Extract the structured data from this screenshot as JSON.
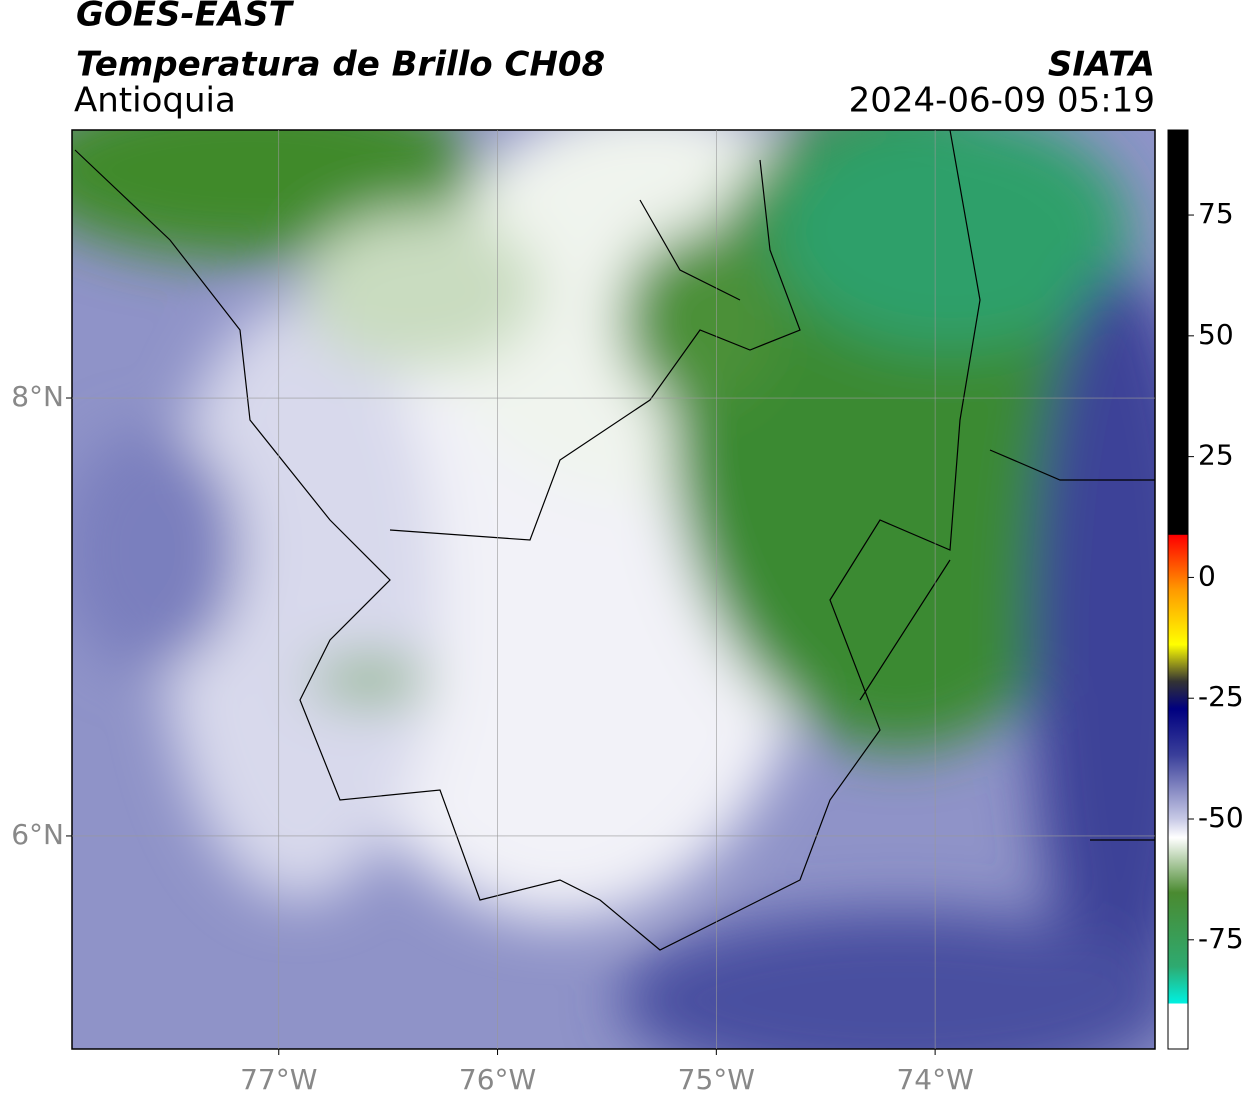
{
  "header": {
    "title": "GOES-EAST",
    "subtitle": "Temperatura de Brillo CH08",
    "region": "Antioquia",
    "source": "SIATA",
    "datetime": "2024-06-09 05:19"
  },
  "map": {
    "xlim": [
      -77.945,
      -72.995
    ],
    "ylim": [
      5.027,
      9.224
    ],
    "xticks": [
      {
        "value": -77,
        "label": "77°W"
      },
      {
        "value": -76,
        "label": "76°W"
      },
      {
        "value": -75,
        "label": "75°W"
      },
      {
        "value": -74,
        "label": "74°W"
      }
    ],
    "yticks": [
      {
        "value": 8,
        "label": "8°N"
      },
      {
        "value": 6,
        "label": "6°N"
      }
    ]
  },
  "colorbar": {
    "lim": [
      -97.6,
      92.6
    ],
    "ticks": [
      75,
      50,
      25,
      0,
      -25,
      -50,
      -75
    ]
  }
}
